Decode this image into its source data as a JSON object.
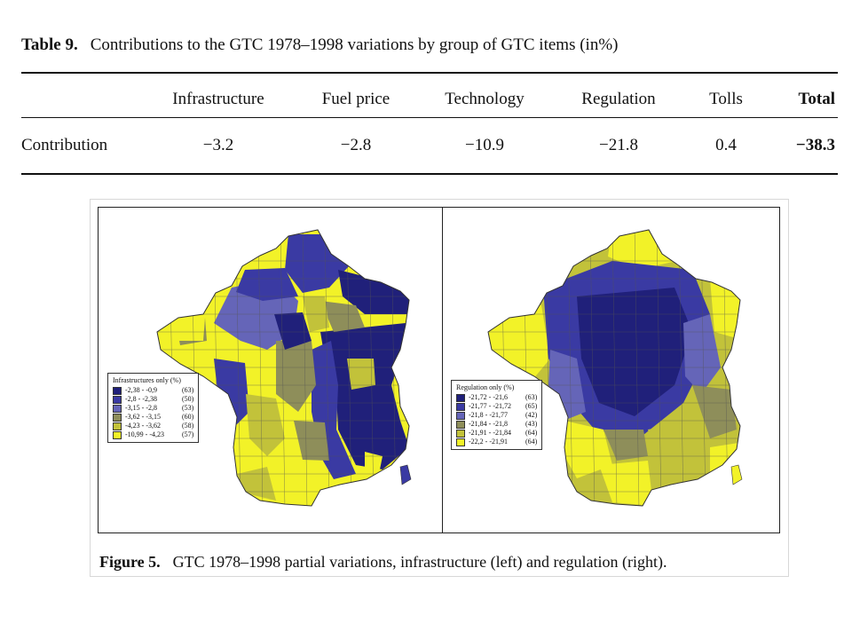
{
  "table": {
    "label": "Table 9.",
    "caption": "Contributions to the GTC 1978–1998 variations by group of GTC items (in%)",
    "headers": [
      "Infrastructure",
      "Fuel price",
      "Technology",
      "Regulation",
      "Tolls",
      "Total"
    ],
    "row_label": "Contribution",
    "values": [
      "−3.2",
      "−2.8",
      "−10.9",
      "−21.8",
      "0.4",
      "−38.3"
    ]
  },
  "figure": {
    "label": "Figure 5.",
    "caption": "GTC 1978–1998 partial variations, infrastructure (left) and regulation (right).",
    "left_map": {
      "legend_title": "Infrastructures only (%)",
      "classes": [
        {
          "range": "-2,38 - -0,9",
          "count": "(63)",
          "color": "#20207a"
        },
        {
          "range": "-2,8  - -2,38",
          "count": "(50)",
          "color": "#3a3aa3"
        },
        {
          "range": "-3,15 - -2,8",
          "count": "(53)",
          "color": "#6565b8"
        },
        {
          "range": "-3,62 - -3,15",
          "count": "(60)",
          "color": "#8e8e5a"
        },
        {
          "range": "-4,23 - -3,62",
          "count": "(58)",
          "color": "#c2c23a"
        },
        {
          "range": "-10,99 - -4,23",
          "count": "(57)",
          "color": "#f2f228"
        }
      ]
    },
    "right_map": {
      "legend_title": "Regulation only (%)",
      "classes": [
        {
          "range": "-21,72 - -21,6",
          "count": "(63)",
          "color": "#20207a"
        },
        {
          "range": "-21,77 - -21,72",
          "count": "(65)",
          "color": "#3a3aa3"
        },
        {
          "range": "-21,8  - -21,77",
          "count": "(42)",
          "color": "#6565b8"
        },
        {
          "range": "-21,84 - -21,8",
          "count": "(43)",
          "color": "#8e8e5a"
        },
        {
          "range": "-21,91 - -21,84",
          "count": "(64)",
          "color": "#c2c23a"
        },
        {
          "range": "-22,2  - -21,91",
          "count": "(64)",
          "color": "#f2f228"
        }
      ]
    }
  }
}
